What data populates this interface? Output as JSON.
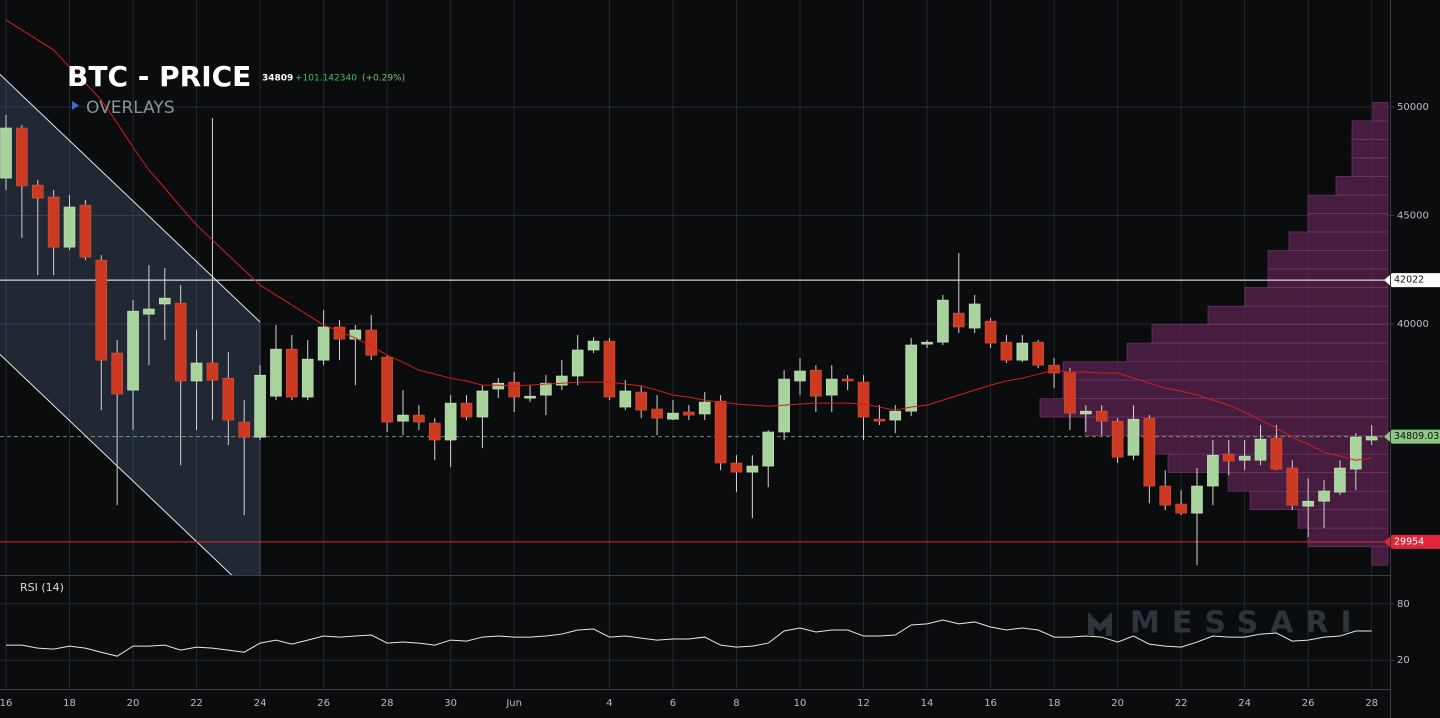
{
  "header": {
    "title": "BTC - PRICE",
    "price": "34809",
    "change": "+101.142340",
    "change_pct": "(+0.29%)",
    "overlays": "OVERLAYS"
  },
  "watermark": "MESSARI",
  "chart_data": [
    {
      "type": "candlestick",
      "categories": [
        "16",
        null,
        null,
        null,
        "18",
        null,
        null,
        null,
        "20",
        null,
        null,
        null,
        "22",
        null,
        null,
        null,
        "24",
        null,
        null,
        null,
        "26",
        null,
        null,
        null,
        "28",
        null,
        null,
        null,
        "30",
        null,
        null,
        null,
        "Jun",
        null,
        null,
        null,
        null,
        null,
        "4",
        null,
        null,
        null,
        "6",
        null,
        null,
        null,
        "8",
        null,
        null,
        null,
        "10",
        null,
        null,
        null,
        "12",
        null,
        null,
        null,
        "14",
        null,
        null,
        null,
        "16",
        null,
        null,
        null,
        "18",
        null,
        null,
        null,
        "20",
        null,
        null,
        null,
        "22",
        null,
        null,
        null,
        "24",
        null,
        null,
        null,
        "26",
        null,
        null,
        null,
        "28"
      ],
      "open": [
        46720,
        49030,
        46400,
        45850,
        43540,
        45480,
        42940,
        38660,
        36950,
        40450,
        40920,
        40960,
        37370,
        38200,
        37500,
        35480,
        34780,
        36670,
        38840,
        36630,
        38330,
        39860,
        39300,
        39720,
        38470,
        35520,
        35800,
        35430,
        34650,
        36350,
        35710,
        37000,
        37320,
        36580,
        36720,
        37180,
        37600,
        38800,
        39210,
        36170,
        36860,
        36080,
        35610,
        35940,
        35850,
        36440,
        33590,
        33170,
        33450,
        35020,
        37370,
        37870,
        36720,
        37460,
        37320,
        35610,
        35570,
        35980,
        39070,
        39160,
        40500,
        39810,
        40130,
        39160,
        38330,
        39160,
        38100,
        37780,
        35850,
        35980,
        35520,
        33950,
        35660,
        32530,
        31700,
        31280,
        32530,
        34000,
        33720,
        33720,
        34740,
        33360,
        31600,
        31830,
        32250,
        33310,
        34650
      ],
      "high": [
        49630,
        49170,
        46630,
        46170,
        45940,
        45710,
        43170,
        39260,
        41100,
        42710,
        42580,
        41790,
        39720,
        49490,
        38700,
        36490,
        38100,
        39950,
        39490,
        39260,
        40640,
        40180,
        39950,
        40410,
        38560,
        36950,
        36260,
        35660,
        36720,
        36720,
        37180,
        37500,
        37780,
        37180,
        37640,
        38330,
        39490,
        39390,
        39350,
        37410,
        37180,
        36720,
        36490,
        36260,
        36860,
        36720,
        33950,
        33950,
        35110,
        37870,
        38430,
        38100,
        38100,
        37640,
        37640,
        36260,
        36260,
        39350,
        39260,
        41330,
        43270,
        41330,
        40270,
        39490,
        39490,
        39260,
        38430,
        37970,
        36260,
        36260,
        35660,
        36260,
        35800,
        33260,
        32340,
        33360,
        34650,
        34650,
        34650,
        35340,
        35340,
        33720,
        32890,
        32800,
        33720,
        34970,
        35340
      ],
      "low": [
        46170,
        43960,
        42250,
        42250,
        43410,
        42940,
        36030,
        31650,
        35110,
        38100,
        39260,
        33490,
        35110,
        35570,
        34420,
        31190,
        34650,
        36490,
        36490,
        36490,
        38100,
        38330,
        37180,
        38330,
        35020,
        34880,
        35110,
        33720,
        33400,
        35570,
        34280,
        36580,
        35940,
        36400,
        35800,
        36950,
        37180,
        38660,
        36490,
        36030,
        35660,
        34880,
        35570,
        35570,
        35570,
        33260,
        32250,
        31050,
        32480,
        34650,
        36720,
        35940,
        35940,
        36950,
        34650,
        35340,
        34970,
        35750,
        38890,
        39030,
        39580,
        39580,
        38890,
        38200,
        38240,
        37970,
        37040,
        35110,
        35020,
        34880,
        33590,
        33720,
        31740,
        31420,
        31190,
        28880,
        31650,
        33030,
        33260,
        33490,
        33260,
        31420,
        30170,
        30590,
        32110,
        32340,
        34420
      ],
      "close": [
        49030,
        46360,
        45800,
        43540,
        45390,
        43080,
        38330,
        36770,
        40590,
        40690,
        41190,
        37370,
        38200,
        37410,
        35570,
        34780,
        37640,
        38840,
        36630,
        38380,
        39860,
        39300,
        39720,
        38560,
        35480,
        35800,
        35480,
        34650,
        36350,
        35710,
        36910,
        37270,
        36630,
        36670,
        37270,
        37600,
        38800,
        39210,
        36630,
        36910,
        36030,
        35660,
        35890,
        35800,
        36400,
        33590,
        33170,
        33450,
        35020,
        37460,
        37830,
        36670,
        37460,
        37370,
        35710,
        35520,
        35980,
        39030,
        39160,
        41100,
        39860,
        40920,
        39120,
        38330,
        39120,
        38100,
        37740,
        35890,
        35980,
        35520,
        33860,
        35610,
        32530,
        31650,
        31280,
        32530,
        33950,
        33680,
        33910,
        34690,
        33310,
        31650,
        31830,
        32300,
        33360,
        34780,
        34809
      ],
      "up_color": "#a9d39c",
      "down_color": "#cc3a22",
      "wick_color": "#d4d4d4",
      "ylim": [
        28430,
        54930
      ],
      "yticks": [
        40000,
        45000,
        50000
      ],
      "grid": true,
      "moving_average": {
        "color": "#d21f1a",
        "values": [
          54010,
          53550,
          53090,
          52630,
          51840,
          51100,
          50320,
          49260,
          48150,
          47090,
          46260,
          45390,
          44560,
          43870,
          43170,
          42480,
          41790,
          41330,
          40870,
          40410,
          39950,
          39670,
          39350,
          38980,
          38560,
          38240,
          37870,
          37690,
          37500,
          37370,
          37180,
          37180,
          37140,
          37180,
          37230,
          37270,
          37320,
          37320,
          37320,
          37230,
          37140,
          36950,
          36720,
          36630,
          36490,
          36400,
          36310,
          36260,
          36210,
          36260,
          36310,
          36350,
          36350,
          36350,
          36310,
          36170,
          36030,
          36170,
          36260,
          36490,
          36720,
          36950,
          37180,
          37370,
          37500,
          37690,
          37870,
          37780,
          37780,
          37740,
          37740,
          37500,
          37270,
          37040,
          36910,
          36720,
          36490,
          36260,
          35940,
          35570,
          35200,
          34780,
          34460,
          34090,
          33910,
          33720,
          33820
        ]
      },
      "levels": [
        {
          "value": 42022,
          "color": "#ffffff"
        },
        {
          "value": 29954,
          "color": "#e0263a"
        },
        {
          "value": 34809.03,
          "color": "#8cc784",
          "dashed": true
        }
      ],
      "volume_profile": {
        "color": "#5b2350",
        "bins": [
          28880,
          29730,
          30590,
          31440,
          32290,
          33150,
          34000,
          34850,
          35710,
          36560,
          37410,
          38260,
          39120,
          39970,
          40820,
          41680,
          42530,
          43380,
          44240,
          45090,
          45940,
          46800,
          47650,
          48500,
          49360,
          50210
        ],
        "values": [
          16,
          80,
          90,
          138,
          160,
          220,
          240,
          303,
          348,
          325,
          325,
          261,
          236,
          180,
          143,
          120,
          120,
          99,
          80,
          80,
          52,
          36,
          36,
          36,
          15
        ]
      },
      "channel": {
        "x": [
          0,
          16
        ],
        "upper": [
          51930,
          40090
        ],
        "lower": [
          39030,
          27180
        ]
      }
    },
    {
      "type": "line",
      "title": "RSI (14)",
      "color": "#e8e8e8",
      "values": [
        36.0,
        36.0,
        32.8,
        31.8,
        35.0,
        32.8,
        28.5,
        24.3,
        35.0,
        35.0,
        36.0,
        30.7,
        33.9,
        32.8,
        30.7,
        28.5,
        38.2,
        41.4,
        37.1,
        41.4,
        45.7,
        44.6,
        45.7,
        46.8,
        38.2,
        39.3,
        38.2,
        36.0,
        41.4,
        40.3,
        44.6,
        45.7,
        44.6,
        44.6,
        45.7,
        47.8,
        52.1,
        53.2,
        44.6,
        45.7,
        43.5,
        41.4,
        42.5,
        42.5,
        44.6,
        36.0,
        33.9,
        35.0,
        38.2,
        51.1,
        54.3,
        50.0,
        52.1,
        52.1,
        45.7,
        45.7,
        46.8,
        57.5,
        58.6,
        62.8,
        58.6,
        60.7,
        55.3,
        52.1,
        54.3,
        52.1,
        44.6,
        44.6,
        45.7,
        44.6,
        39.3,
        45.7,
        37.1,
        35.0,
        33.9,
        39.3,
        45.7,
        44.6,
        44.6,
        47.8,
        48.9,
        40.3,
        41.4,
        44.6,
        45.7,
        51.1,
        51.1
      ],
      "ylim": [
        0,
        100
      ],
      "yticks": [
        20,
        80
      ],
      "grid": true
    }
  ]
}
